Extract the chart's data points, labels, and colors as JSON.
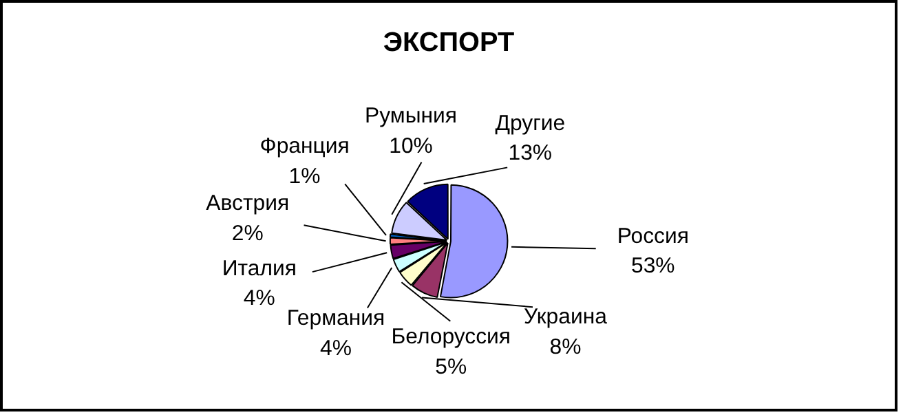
{
  "chart_data": {
    "type": "pie",
    "title": "ЭКСПОРТ",
    "categories": [
      "Россия",
      "Украина",
      "Белоруссия",
      "Германия",
      "Италия",
      "Австрия",
      "Франция",
      "Румыния",
      "Другие"
    ],
    "values": [
      53,
      8,
      5,
      4,
      4,
      2,
      1,
      10,
      13
    ],
    "value_labels": [
      "53%",
      "8%",
      "5%",
      "4%",
      "4%",
      "2%",
      "1%",
      "10%",
      "13%"
    ],
    "colors": [
      "#9999ff",
      "#993366",
      "#ffffcc",
      "#ccffff",
      "#660066",
      "#ff8080",
      "#0066cc",
      "#ccccff",
      "#000080"
    ],
    "legend": false
  }
}
